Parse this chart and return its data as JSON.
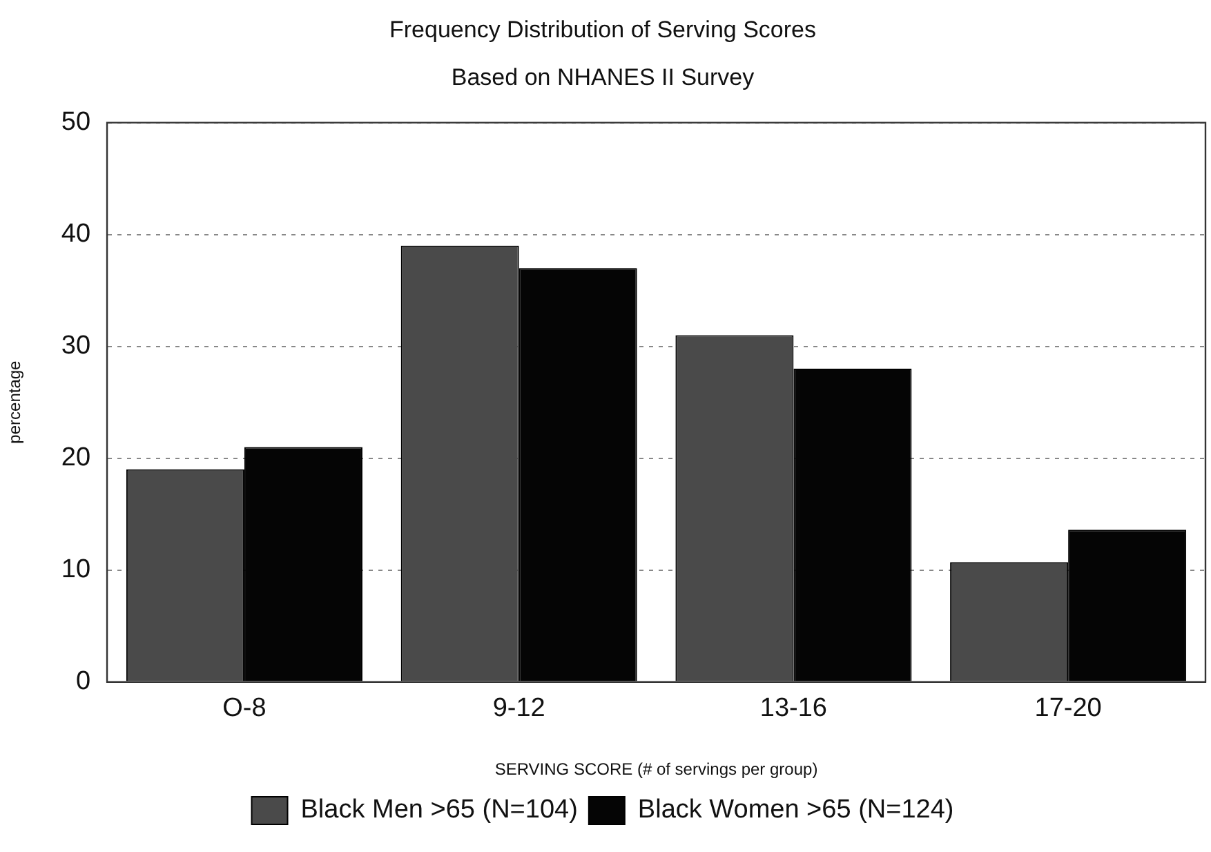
{
  "chart_data": {
    "type": "bar",
    "title": "Frequency Distribution of Serving Scores",
    "subtitle": "Based on NHANES II Survey",
    "xlabel": "SERVING SCORE (# of servings per group)",
    "ylabel": "percentage",
    "categories": [
      "O-8",
      "9-12",
      "13-16",
      "17-20"
    ],
    "series": [
      {
        "name": "Black Men >65 (N=104)",
        "color": "#4a4a4a",
        "values": [
          19,
          39,
          31,
          10.7
        ]
      },
      {
        "name": "Black Women >65 (N=124)",
        "color": "#050505",
        "values": [
          21,
          37,
          28,
          13.6
        ]
      }
    ],
    "ylim": [
      0,
      50
    ],
    "yticks": [
      0,
      10,
      20,
      30,
      40,
      50
    ],
    "grid": "y",
    "legend": "bottom"
  }
}
